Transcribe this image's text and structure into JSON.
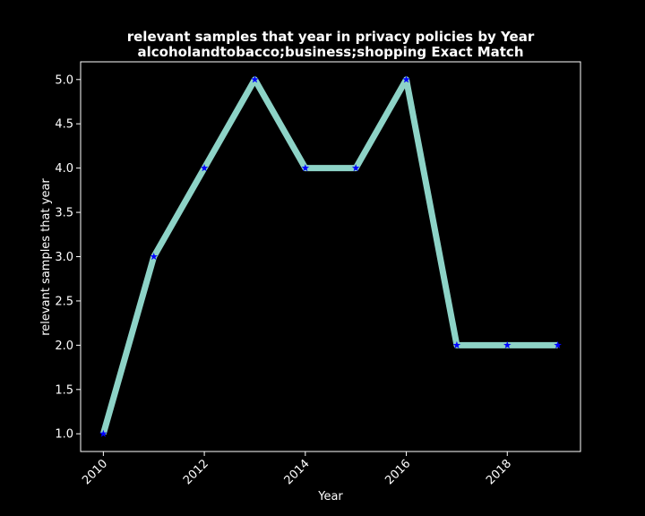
{
  "chart_data": {
    "type": "line",
    "title_line1": "relevant samples that year in privacy policies by Year",
    "title_line2": "alcoholandtobacco;business;shopping Exact Match",
    "xlabel": "Year",
    "ylabel": "relevant samples that year",
    "x": [
      2010,
      2011,
      2012,
      2013,
      2014,
      2015,
      2016,
      2017,
      2018,
      2019
    ],
    "series": [
      {
        "values": [
          1,
          3,
          4,
          5,
          4,
          4,
          5,
          2,
          2,
          2
        ]
      }
    ],
    "xlim": [
      2009.55,
      2019.45
    ],
    "ylim": [
      0.8,
      5.2
    ],
    "xticks": [
      2010,
      2012,
      2014,
      2016,
      2018
    ],
    "yticks": [
      "1.0",
      "1.5",
      "2.0",
      "2.5",
      "3.0",
      "3.5",
      "4.0",
      "4.5",
      "5.0"
    ],
    "grid": false,
    "background": "#000000",
    "line_color": "#8dd3c7",
    "marker_color": "#0000ff",
    "marker": "star-icon"
  }
}
